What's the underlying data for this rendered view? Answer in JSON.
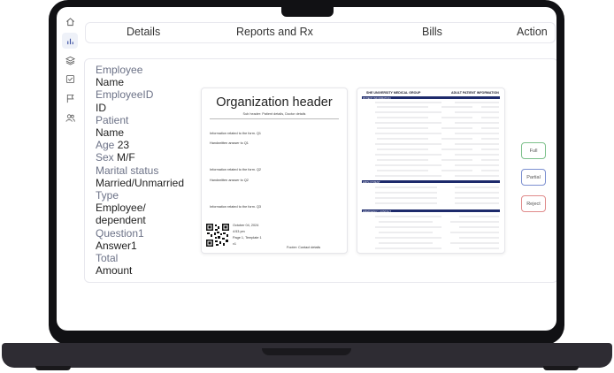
{
  "tabs": [
    "Details",
    "Reports and Rx",
    "Bills",
    "Action"
  ],
  "fields": [
    {
      "text": "Employee",
      "kind": "lbl"
    },
    {
      "text": "Name",
      "kind": "val"
    },
    {
      "text": "EmployeeID",
      "kind": "lbl"
    },
    {
      "text": "ID",
      "kind": "val"
    },
    {
      "text": "Patient",
      "kind": "lbl"
    },
    {
      "text": "Name",
      "kind": "val"
    },
    {
      "text": "Age 23",
      "kind": "val",
      "muted_prefix": "Age"
    },
    {
      "text": "Sex M/F",
      "kind": "val",
      "muted_prefix": "Sex"
    },
    {
      "text": "Marital status",
      "kind": "lbl"
    },
    {
      "text": "Married/Unmarried",
      "kind": "val"
    },
    {
      "text": "Type",
      "kind": "lbl"
    },
    {
      "text": "Employee/",
      "kind": "val"
    },
    {
      "text": "dependent",
      "kind": "val"
    },
    {
      "text": "Question1",
      "kind": "lbl"
    },
    {
      "text": "Answer1",
      "kind": "val"
    },
    {
      "text": "Total",
      "kind": "lbl"
    },
    {
      "text": "Amount",
      "kind": "val"
    }
  ],
  "doc1": {
    "title": "Organization header",
    "subheader": "Sub header: Patient details, Doctor details",
    "q1_info": "Information related to the form. Q1",
    "q1_answer": "Handwritten answer to Q1",
    "q2_info": "Information related to the form. Q2",
    "q2_answer": "Handwritten answer to Q2",
    "q3_info": "Information related to the form. Q3",
    "date": "October 04, 2024",
    "time": "4:53 pm",
    "page": "Page 1, Template 1",
    "version": "v1",
    "footer": "Footer: Contact details"
  },
  "doc2": {
    "org": "SHE UNIVERSITY MEDICAL GROUP",
    "form_title": "ADULT PATIENT INFORMATION",
    "section_patient": "PATIENT INFORMATION",
    "section_employment": "EMPLOYMENT",
    "section_emergency": "EMERGENCY CONTACT"
  },
  "actions": {
    "full": "Full",
    "partial": "Partial",
    "reject": "Reject"
  },
  "colors": {
    "full": "#7cc08a",
    "partial": "#7b8fd0",
    "reject": "#e08b8b",
    "form_header": "#1d2a6b"
  },
  "icons": [
    "home-icon",
    "chart-icon",
    "layers-icon",
    "checkbox-icon",
    "flag-icon",
    "users-icon"
  ]
}
